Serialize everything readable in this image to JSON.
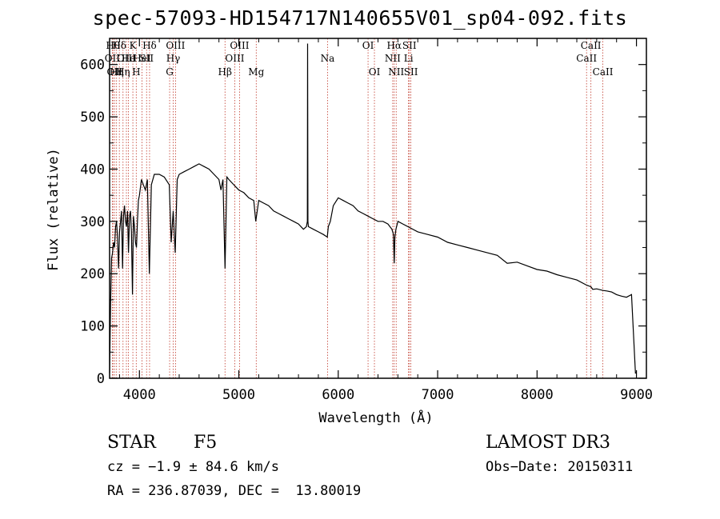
{
  "chart_data": {
    "type": "line",
    "title": "spec-57093-HD154717N140655V01_sp04-092.fits",
    "xlabel": "Wavelength (Å)",
    "ylabel": "Flux (relative)",
    "xlim": [
      3700,
      9100
    ],
    "ylim": [
      0,
      650
    ],
    "xticks": [
      4000,
      5000,
      6000,
      7000,
      8000,
      9000
    ],
    "xtick_labels": [
      "4000",
      "5000",
      "6000",
      "7000",
      "8000",
      "9000"
    ],
    "yticks": [
      0,
      100,
      200,
      300,
      400,
      500,
      600
    ],
    "ytick_labels": [
      "0",
      "100",
      "200",
      "300",
      "400",
      "500",
      "600"
    ],
    "series": [
      {
        "name": "flux",
        "x": [
          3700,
          3710,
          3720,
          3730,
          3740,
          3750,
          3760,
          3770,
          3780,
          3790,
          3800,
          3810,
          3820,
          3830,
          3840,
          3850,
          3860,
          3870,
          3880,
          3890,
          3900,
          3910,
          3920,
          3930,
          3940,
          3950,
          3960,
          3970,
          3980,
          3990,
          4000,
          4020,
          4040,
          4060,
          4080,
          4100,
          4120,
          4150,
          4200,
          4250,
          4300,
          4320,
          4340,
          4360,
          4380,
          4400,
          4450,
          4500,
          4550,
          4600,
          4650,
          4700,
          4750,
          4800,
          4820,
          4840,
          4861,
          4880,
          4900,
          4950,
          5000,
          5050,
          5100,
          5150,
          5170,
          5200,
          5250,
          5300,
          5350,
          5400,
          5450,
          5500,
          5550,
          5600,
          5650,
          5680,
          5689,
          5692,
          5695,
          5700,
          5750,
          5800,
          5850,
          5890,
          5900,
          5920,
          5950,
          6000,
          6050,
          6100,
          6150,
          6200,
          6250,
          6300,
          6350,
          6400,
          6450,
          6500,
          6540,
          6555,
          6563,
          6570,
          6580,
          6600,
          6650,
          6700,
          6800,
          6900,
          7000,
          7100,
          7200,
          7300,
          7400,
          7500,
          7600,
          7700,
          7800,
          7900,
          8000,
          8100,
          8200,
          8300,
          8400,
          8500,
          8542,
          8560,
          8600,
          8662,
          8700,
          8750,
          8800,
          8850,
          8900,
          8950,
          8990,
          9000
        ],
        "y": [
          10,
          140,
          230,
          240,
          260,
          250,
          290,
          300,
          270,
          210,
          280,
          300,
          320,
          210,
          310,
          330,
          300,
          290,
          320,
          240,
          310,
          320,
          280,
          160,
          310,
          290,
          260,
          250,
          300,
          340,
          350,
          380,
          370,
          360,
          380,
          200,
          370,
          390,
          390,
          385,
          370,
          260,
          320,
          240,
          380,
          390,
          395,
          400,
          405,
          410,
          405,
          400,
          390,
          380,
          360,
          380,
          210,
          385,
          380,
          370,
          360,
          355,
          345,
          340,
          300,
          340,
          335,
          330,
          320,
          315,
          310,
          305,
          300,
          295,
          285,
          290,
          300,
          640,
          300,
          290,
          285,
          280,
          275,
          270,
          290,
          300,
          330,
          345,
          340,
          335,
          330,
          320,
          315,
          310,
          305,
          300,
          300,
          295,
          285,
          275,
          220,
          270,
          285,
          300,
          295,
          290,
          280,
          275,
          270,
          260,
          255,
          250,
          245,
          240,
          235,
          220,
          222,
          215,
          208,
          205,
          198,
          193,
          188,
          178,
          175,
          170,
          171,
          168,
          167,
          165,
          160,
          157,
          155,
          160,
          10,
          10
        ]
      }
    ],
    "line_markers": [
      {
        "w": 3734,
        "label": "Hθ",
        "row": 1
      },
      {
        "w": 3727,
        "label": "OII",
        "row": 2
      },
      {
        "w": 3750,
        "label": "OII",
        "row": 3
      },
      {
        "w": 3770,
        "label": "Hη",
        "row": 3
      },
      {
        "w": 3798,
        "label": "Hδ",
        "row": 1
      },
      {
        "w": 3835,
        "label": "Hη",
        "row": 3
      },
      {
        "w": 3869,
        "label": "OIII",
        "row": 2
      },
      {
        "w": 3889,
        "label": "He",
        "row": 2
      },
      {
        "w": 3934,
        "label": "K",
        "row": 1
      },
      {
        "w": 3968,
        "label": "H",
        "row": 3
      },
      {
        "w": 4026,
        "label": "HeI",
        "row": 2
      },
      {
        "w": 4072,
        "label": "SII",
        "row": 2
      },
      {
        "w": 4102,
        "label": "Hδ",
        "row": 1
      },
      {
        "w": 4304,
        "label": "G",
        "row": 3
      },
      {
        "w": 4340,
        "label": "Hγ",
        "row": 2
      },
      {
        "w": 4363,
        "label": "OIII",
        "row": 1
      },
      {
        "w": 4861,
        "label": "Hβ",
        "row": 3
      },
      {
        "w": 4959,
        "label": "OIII",
        "row": 2
      },
      {
        "w": 5007,
        "label": "OIII",
        "row": 1
      },
      {
        "w": 5175,
        "label": "Mg",
        "row": 3
      },
      {
        "w": 5893,
        "label": "Na",
        "row": 2
      },
      {
        "w": 6300,
        "label": "OI",
        "row": 1
      },
      {
        "w": 6364,
        "label": "OI",
        "row": 3
      },
      {
        "w": 6548,
        "label": "NII",
        "row": 2
      },
      {
        "w": 6563,
        "label": "Hα",
        "row": 1
      },
      {
        "w": 6583,
        "label": "NII",
        "row": 3
      },
      {
        "w": 6707,
        "label": "Li",
        "row": 2
      },
      {
        "w": 6716,
        "label": "SII",
        "row": 1
      },
      {
        "w": 6731,
        "label": "SII",
        "row": 3
      },
      {
        "w": 8498,
        "label": "CaII",
        "row": 2
      },
      {
        "w": 8542,
        "label": "CaII",
        "row": 1
      },
      {
        "w": 8662,
        "label": "CaII",
        "row": 3
      }
    ]
  },
  "info": {
    "class": "STAR",
    "subclass": "F5",
    "survey": "LAMOST DR3",
    "cz": "cz = −1.9 ± 84.6 km/s",
    "obs_date": "Obs−Date: 20150311",
    "coords": "RA = 236.87039, DEC =  13.80019"
  }
}
